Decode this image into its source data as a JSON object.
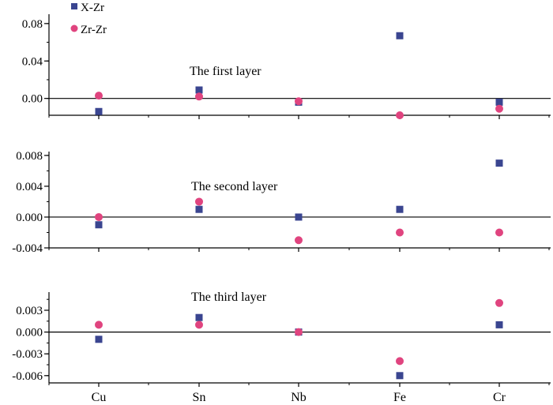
{
  "colors": {
    "x_zr": "#3a4590",
    "zr_zr": "#e0447f",
    "axis": "#000000"
  },
  "legend": [
    {
      "name": "X-Zr",
      "marker": "square",
      "color": "#3a4590"
    },
    {
      "name": "Zr-Zr",
      "marker": "circle",
      "color": "#e0447f"
    }
  ],
  "chart_data": [
    {
      "type": "scatter",
      "title": "The first layer",
      "categories": [
        "Cu",
        "Sn",
        "Nb",
        "Fe",
        "Cr"
      ],
      "ylim": [
        -0.018,
        0.09
      ],
      "yticks": [
        "0.08",
        "0.04",
        "0.00"
      ],
      "ytick_values": [
        0.08,
        0.04,
        0.0
      ],
      "series": [
        {
          "name": "X-Zr",
          "values": [
            -0.014,
            0.009,
            -0.004,
            0.067,
            -0.004
          ]
        },
        {
          "name": "Zr-Zr",
          "values": [
            0.003,
            0.002,
            -0.003,
            -0.018,
            -0.011
          ]
        }
      ]
    },
    {
      "type": "scatter",
      "title": "The second layer",
      "categories": [
        "Cu",
        "Sn",
        "Nb",
        "Fe",
        "Cr"
      ],
      "ylim": [
        -0.004,
        0.0085
      ],
      "yticks": [
        "0.008",
        "0.004",
        "0.000",
        "-0.004"
      ],
      "ytick_values": [
        0.008,
        0.004,
        0.0,
        -0.004
      ],
      "series": [
        {
          "name": "X-Zr",
          "values": [
            -0.001,
            0.001,
            0.0,
            0.001,
            0.007
          ]
        },
        {
          "name": "Zr-Zr",
          "values": [
            0.0,
            0.002,
            -0.003,
            -0.002,
            -0.002
          ]
        }
      ]
    },
    {
      "type": "scatter",
      "title": "The third layer",
      "categories": [
        "Cu",
        "Sn",
        "Nb",
        "Fe",
        "Cr"
      ],
      "ylim": [
        -0.007,
        0.0055
      ],
      "yticks": [
        "0.003",
        "0.000",
        "-0.003",
        "-0.006"
      ],
      "ytick_values": [
        0.003,
        0.0,
        -0.003,
        -0.006
      ],
      "series": [
        {
          "name": "X-Zr",
          "values": [
            -0.001,
            0.002,
            0.0,
            -0.006,
            0.001
          ]
        },
        {
          "name": "Zr-Zr",
          "values": [
            0.001,
            0.001,
            0.0,
            -0.004,
            0.004
          ]
        }
      ]
    }
  ]
}
